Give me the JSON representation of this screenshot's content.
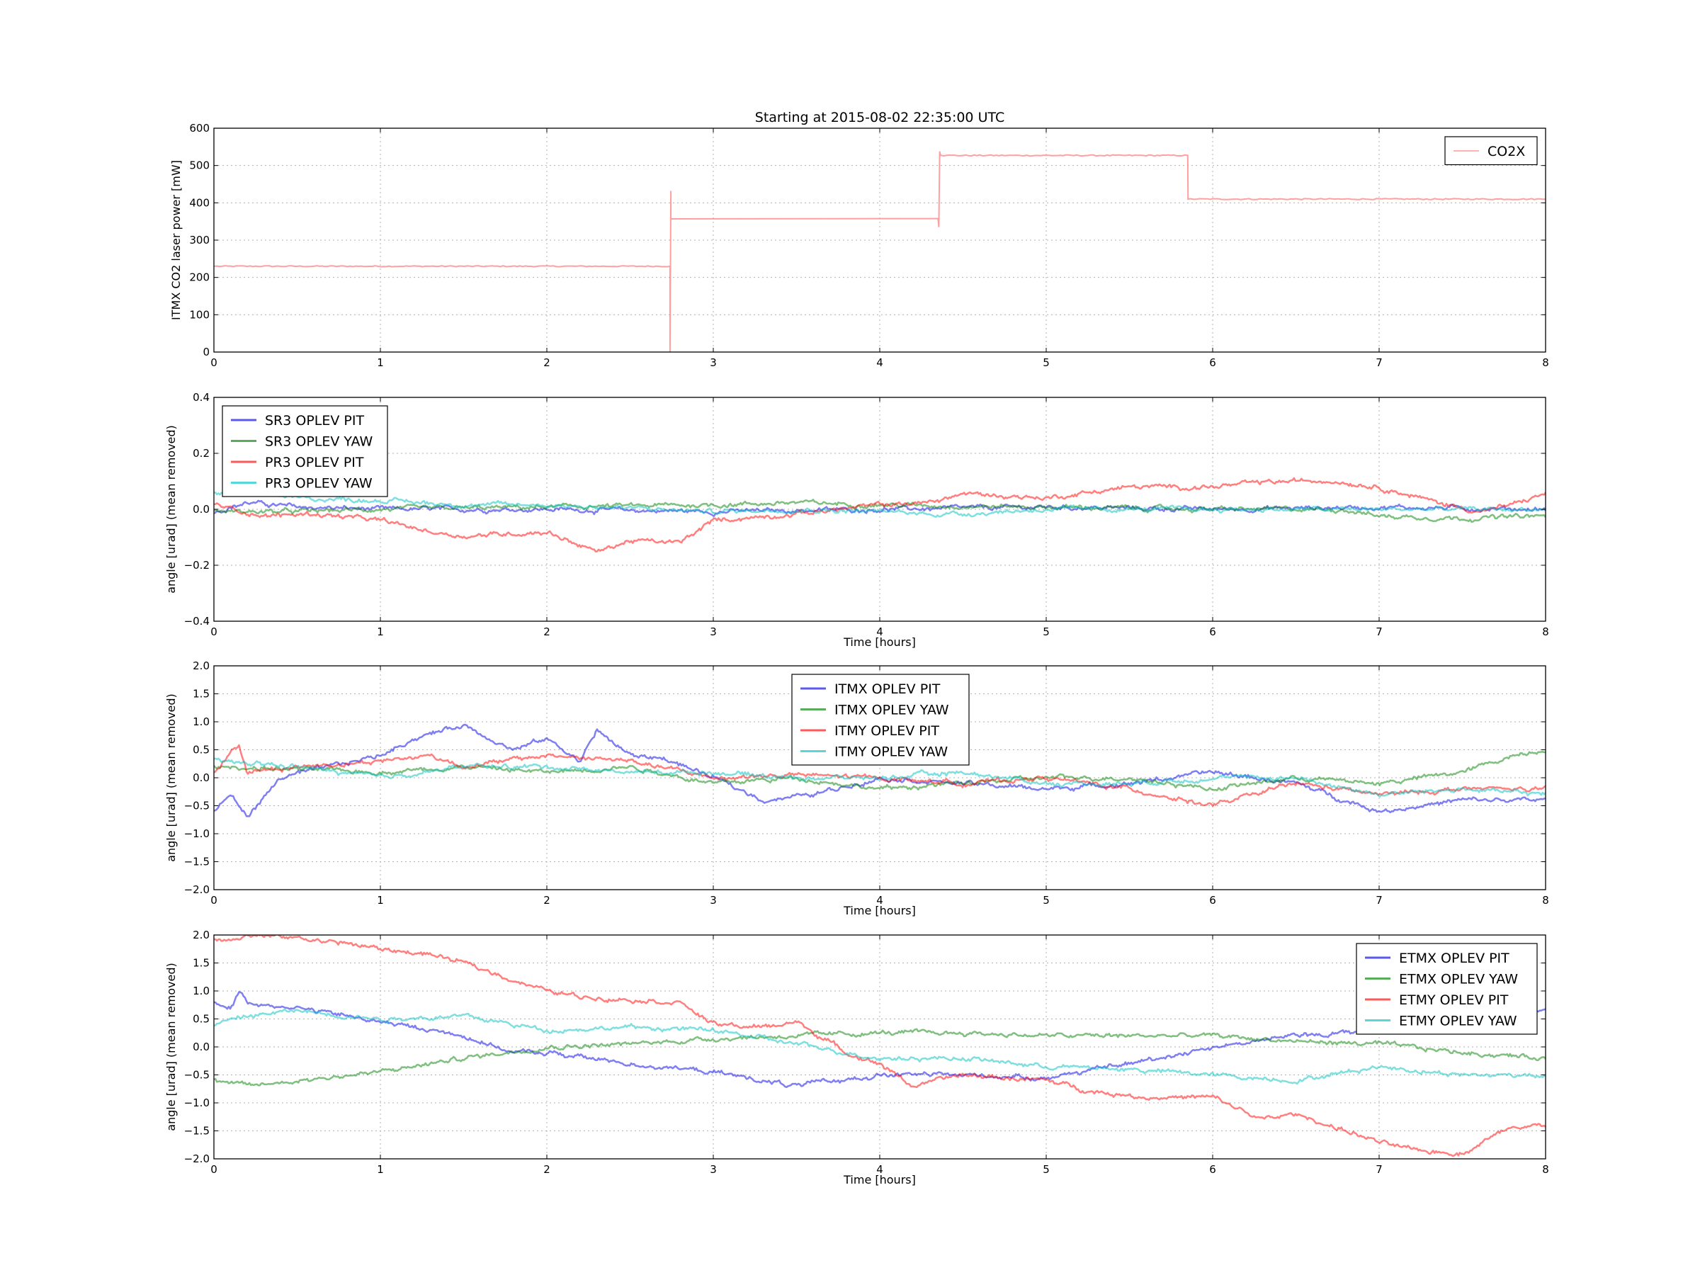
{
  "chart_data": [
    {
      "type": "line",
      "title": "Starting at 2015-08-02 22:35:00 UTC",
      "xlabel": "",
      "ylabel": "ITMX CO2 laser power [mW]",
      "xlim": [
        0,
        8
      ],
      "ylim": [
        0,
        600
      ],
      "xticks": [
        "0",
        "1",
        "2",
        "3",
        "4",
        "5",
        "6",
        "7",
        "8"
      ],
      "yticks": [
        "0",
        "100",
        "200",
        "300",
        "400",
        "500",
        "600"
      ],
      "grid": true,
      "legend_position": "top-right",
      "series": [
        {
          "name": "CO2X",
          "color": "#ff8080",
          "x": [
            0,
            2.74,
            2.74,
            2.745,
            2.745,
            2.75,
            2.76,
            4.35,
            4.355,
            4.36,
            4.365,
            4.37,
            4.4,
            5.85,
            5.852,
            8
          ],
          "y": [
            230,
            230,
            0,
            432,
            355,
            357,
            357,
            358,
            335,
            538,
            527,
            527,
            527,
            527,
            410,
            410
          ]
        }
      ]
    },
    {
      "type": "line",
      "title": "",
      "xlabel": "Time [hours]",
      "ylabel": "angle [urad] (mean removed)",
      "xlim": [
        0,
        8
      ],
      "ylim": [
        -0.5,
        0.5
      ],
      "xticks": [
        "0",
        "1",
        "2",
        "3",
        "4",
        "5",
        "6",
        "7",
        "8"
      ],
      "yticks": [
        "−0.4",
        "−0.2",
        "0.0",
        "0.2",
        "0.4"
      ],
      "grid": true,
      "legend_position": "top-left",
      "series": [
        {
          "name": "SR3 OPLEV PIT",
          "color": "#0000e6",
          "x": [
            0,
            0.2,
            0.5,
            1,
            2,
            3,
            4,
            5,
            6,
            7,
            8
          ],
          "y": [
            -0.01,
            0.03,
            0.01,
            0.0,
            0.0,
            -0.01,
            0.0,
            0.01,
            0.0,
            0.01,
            0.0
          ]
        },
        {
          "name": "SR3 OPLEV YAW",
          "color": "#008000",
          "x": [
            0,
            0.5,
            1,
            2,
            3,
            3.5,
            4,
            5,
            6,
            6.8,
            7,
            7.5,
            8
          ],
          "y": [
            -0.01,
            -0.01,
            0.0,
            0.01,
            0.02,
            0.03,
            0.02,
            0.01,
            0.0,
            0.0,
            -0.03,
            -0.04,
            -0.03
          ]
        },
        {
          "name": "PR3 OPLEV PIT",
          "color": "#ff0000",
          "x": [
            0,
            0.3,
            0.6,
            1,
            1.3,
            1.5,
            2,
            2.3,
            2.5,
            2.8,
            3,
            3.5,
            4,
            4.3,
            4.5,
            5,
            5.3,
            5.5,
            6,
            6.3,
            6.7,
            7,
            7.3,
            7.6,
            7.8,
            8
          ],
          "y": [
            0.02,
            -0.03,
            -0.02,
            -0.05,
            -0.1,
            -0.12,
            -0.1,
            -0.19,
            -0.14,
            -0.15,
            -0.05,
            -0.02,
            0.02,
            0.03,
            0.07,
            0.05,
            0.08,
            0.1,
            0.1,
            0.12,
            0.13,
            0.1,
            0.04,
            -0.01,
            0.02,
            0.07
          ]
        },
        {
          "name": "PR3 OPLEV YAW",
          "color": "#00c0c0",
          "x": [
            0,
            0.2,
            0.5,
            1,
            1.5,
            2,
            3,
            3.5,
            4,
            4.3,
            4.5,
            5,
            6,
            7,
            8
          ],
          "y": [
            0.07,
            0.08,
            0.05,
            0.04,
            0.02,
            0.02,
            -0.01,
            0.0,
            -0.01,
            -0.02,
            -0.02,
            0.0,
            0.0,
            0.0,
            0.0
          ]
        }
      ]
    },
    {
      "type": "line",
      "title": "",
      "xlabel": "Time [hours]",
      "ylabel": "angle [urad] (mean removed)",
      "xlim": [
        0,
        8
      ],
      "ylim": [
        -2.0,
        2.0
      ],
      "xticks": [
        "0",
        "1",
        "2",
        "3",
        "4",
        "5",
        "6",
        "7",
        "8"
      ],
      "yticks": [
        "−2.0",
        "−1.5",
        "−1.0",
        "−0.5",
        "0.0",
        "0.5",
        "1.0",
        "1.5",
        "2.0"
      ],
      "grid": true,
      "legend_position": "top-center",
      "series": [
        {
          "name": "ITMX OPLEV PIT",
          "color": "#0000e6",
          "x": [
            0,
            0.1,
            0.2,
            0.4,
            1,
            1.2,
            1.5,
            1.8,
            2,
            2.2,
            2.3,
            2.5,
            2.7,
            3,
            3.3,
            3.6,
            4,
            4.5,
            5,
            5.5,
            6,
            6.5,
            7,
            7.5,
            8
          ],
          "y": [
            -0.6,
            -0.3,
            -0.7,
            0.0,
            0.4,
            0.7,
            0.95,
            0.5,
            0.7,
            0.3,
            0.85,
            0.4,
            0.35,
            0.0,
            -0.4,
            -0.3,
            0.0,
            -0.1,
            -0.2,
            -0.1,
            0.1,
            -0.1,
            -0.6,
            -0.4,
            -0.4
          ]
        },
        {
          "name": "ITMX OPLEV YAW",
          "color": "#008000",
          "x": [
            0,
            0.5,
            1,
            1.5,
            2,
            2.5,
            3,
            3.5,
            4,
            4.5,
            5,
            5.5,
            6,
            6.5,
            7,
            7.5,
            7.8,
            8
          ],
          "y": [
            0.2,
            0.15,
            0.1,
            0.2,
            0.1,
            0.2,
            -0.1,
            0.0,
            -0.2,
            -0.1,
            0.0,
            0.0,
            -0.2,
            0.0,
            -0.1,
            0.1,
            0.4,
            0.5
          ]
        },
        {
          "name": "ITMY OPLEV PIT",
          "color": "#ff0000",
          "x": [
            0,
            0.15,
            0.2,
            0.5,
            1,
            1.3,
            1.5,
            2,
            2.5,
            3,
            3.5,
            4,
            4.5,
            5,
            5.5,
            6,
            6.5,
            7,
            7.5,
            8
          ],
          "y": [
            0.1,
            0.6,
            0.1,
            0.2,
            0.3,
            0.4,
            0.2,
            0.4,
            0.3,
            0.0,
            0.05,
            0.0,
            -0.1,
            0.0,
            -0.2,
            -0.5,
            -0.1,
            -0.3,
            -0.2,
            -0.2
          ]
        },
        {
          "name": "ITMY OPLEV YAW",
          "color": "#00c0c0",
          "x": [
            0,
            0.5,
            1,
            1.5,
            2,
            2.5,
            3,
            3.5,
            4,
            4.5,
            5,
            5.5,
            6,
            6.5,
            7,
            7.5,
            8
          ],
          "y": [
            0.3,
            0.2,
            0.0,
            0.2,
            0.2,
            0.1,
            0.1,
            0.0,
            0.0,
            0.1,
            -0.1,
            -0.1,
            0.0,
            0.0,
            -0.3,
            -0.2,
            -0.3
          ]
        }
      ]
    },
    {
      "type": "line",
      "title": "",
      "xlabel": "Time [hours]",
      "ylabel": "angle [urad] (mean removed)",
      "xlim": [
        0,
        8
      ],
      "ylim": [
        -2.0,
        2.0
      ],
      "xticks": [
        "0",
        "1",
        "2",
        "3",
        "4",
        "5",
        "6",
        "7",
        "8"
      ],
      "yticks": [
        "−2.0",
        "−1.5",
        "−1.0",
        "−0.5",
        "0.0",
        "0.5",
        "1.0",
        "1.5",
        "2.0"
      ],
      "grid": true,
      "legend_position": "top-right",
      "series": [
        {
          "name": "ETMX OPLEV PIT",
          "color": "#0000e6",
          "x": [
            0,
            0.1,
            0.15,
            0.2,
            0.5,
            1,
            1.5,
            1.8,
            2,
            2.5,
            3,
            3.5,
            4,
            4.5,
            5,
            5.5,
            6,
            6.5,
            7,
            7.5,
            8
          ],
          "y": [
            0.8,
            0.7,
            1.0,
            0.8,
            0.7,
            0.45,
            0.2,
            -0.1,
            -0.1,
            -0.3,
            -0.45,
            -0.7,
            -0.5,
            -0.5,
            -0.55,
            -0.3,
            0.0,
            0.2,
            0.3,
            0.6,
            0.7
          ]
        },
        {
          "name": "ETMX OPLEV YAW",
          "color": "#008000",
          "x": [
            0,
            0.2,
            0.5,
            1,
            1.5,
            2,
            2.5,
            3,
            3.5,
            4,
            4.5,
            5,
            5.5,
            6,
            6.5,
            7,
            7.5,
            8
          ],
          "y": [
            -0.6,
            -0.7,
            -0.6,
            -0.45,
            -0.2,
            0.0,
            0.05,
            0.15,
            0.2,
            0.25,
            0.25,
            0.2,
            0.2,
            0.2,
            0.1,
            0.05,
            -0.1,
            -0.2
          ]
        },
        {
          "name": "ETMY OPLEV PIT",
          "color": "#ff0000",
          "x": [
            0,
            0.2,
            0.5,
            0.8,
            1,
            1.3,
            1.5,
            1.8,
            2,
            2.2,
            2.5,
            2.8,
            3,
            3.3,
            3.5,
            3.8,
            4,
            4.2,
            4.5,
            5,
            5.3,
            5.6,
            6,
            6.3,
            6.5,
            7,
            7.2,
            7.5,
            7.8,
            8
          ],
          "y": [
            1.9,
            2.0,
            1.95,
            1.85,
            1.75,
            1.65,
            1.5,
            1.2,
            1.0,
            0.9,
            0.85,
            0.8,
            0.4,
            0.35,
            0.45,
            -0.1,
            -0.3,
            -0.7,
            -0.5,
            -0.6,
            -0.8,
            -0.9,
            -0.9,
            -1.3,
            -1.2,
            -1.7,
            -1.85,
            -1.9,
            -1.4,
            -1.4
          ]
        },
        {
          "name": "ETMY OPLEV YAW",
          "color": "#00c0c0",
          "x": [
            0,
            0.2,
            0.5,
            1,
            1.5,
            2,
            2.5,
            3,
            3.5,
            4,
            4.5,
            5,
            5.5,
            6,
            6.5,
            7,
            7.5,
            8
          ],
          "y": [
            0.4,
            0.55,
            0.65,
            0.5,
            0.55,
            0.3,
            0.35,
            0.3,
            0.05,
            -0.2,
            -0.2,
            -0.35,
            -0.4,
            -0.5,
            -0.6,
            -0.35,
            -0.5,
            -0.5
          ]
        }
      ]
    }
  ]
}
